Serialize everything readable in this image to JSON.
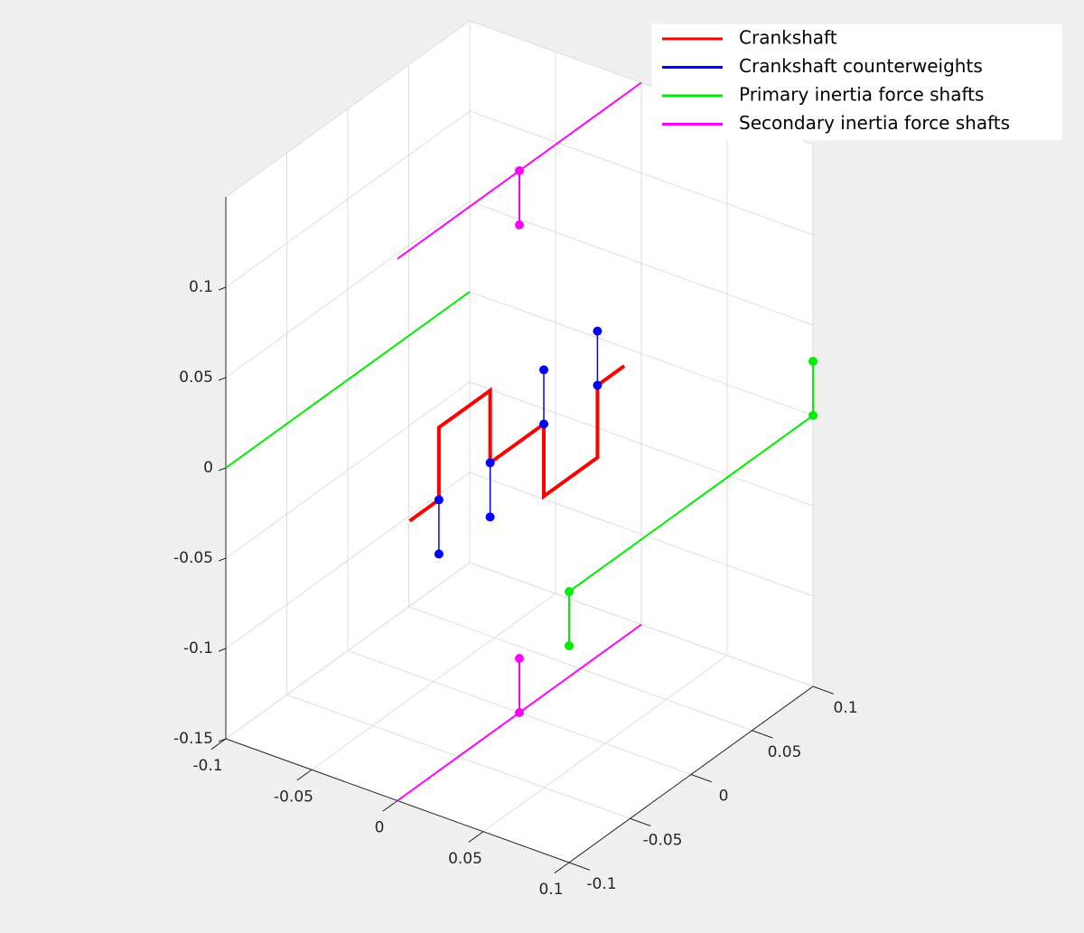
{
  "chart_data": {
    "type": "line3d",
    "xlim": [
      -0.1,
      0.1
    ],
    "ylim": [
      -0.1,
      0.1
    ],
    "zlim": [
      -0.15,
      0.15
    ],
    "xticks": [
      -0.1,
      -0.05,
      0,
      0.05,
      0.1
    ],
    "yticks": [
      -0.1,
      -0.05,
      0,
      0.05,
      0.1
    ],
    "zticks": [
      -0.15,
      -0.1,
      -0.05,
      0,
      0.05,
      0.1
    ],
    "grid": true,
    "legend": "northeast",
    "series": [
      {
        "name": "Crankshaft",
        "color": "#ff0000",
        "linewidth": 4,
        "x": [
          0,
          0,
          0,
          0,
          0,
          0,
          0,
          0,
          0,
          0
        ],
        "y": [
          -0.09,
          -0.066,
          -0.066,
          -0.024,
          -0.024,
          0.02,
          0.02,
          0.064,
          0.064,
          0.086
        ],
        "z": [
          0,
          0,
          0.04,
          0.04,
          0,
          0,
          -0.04,
          -0.04,
          0,
          0
        ]
      },
      {
        "name": "Crankshaft counterweights",
        "color": "#0000ff",
        "linewidth": 1.5,
        "stems": {
          "x": [
            0,
            0,
            null,
            0,
            0,
            null,
            0,
            0,
            null,
            0,
            0
          ],
          "y": [
            -0.066,
            -0.066,
            null,
            -0.024,
            -0.024,
            null,
            0.02,
            0.02,
            null,
            0.064,
            0.064
          ],
          "z": [
            0,
            -0.03,
            null,
            0,
            -0.03,
            null,
            0,
            0.03,
            null,
            0,
            0.03
          ]
        }
      },
      {
        "name": "Primary inertia force shafts",
        "color": "#00ee00",
        "linewidth": 2,
        "x": [
          -0.1,
          -0.1,
          null,
          0.1,
          0.1
        ],
        "y": [
          -0.1,
          0.1,
          null,
          -0.1,
          0.1
        ],
        "z": [
          0,
          0,
          null,
          0,
          0
        ],
        "stems": {
          "x": [
            0.1,
            0.1,
            null,
            0.1,
            0.1
          ],
          "y": [
            0.1,
            0.1,
            null,
            -0.1,
            -0.1
          ],
          "z": [
            0,
            0.03,
            null,
            0,
            -0.03
          ]
        }
      },
      {
        "name": "Secondary inertia force shafts",
        "color": "#ff00ff",
        "linewidth": 2,
        "x": [
          0,
          0,
          null,
          0,
          0
        ],
        "y": [
          -0.1,
          0.1,
          null,
          -0.1,
          0.1
        ],
        "z": [
          0.15,
          0.15,
          null,
          -0.15,
          -0.15
        ],
        "stems": {
          "x": [
            0,
            0,
            null,
            0,
            0
          ],
          "y": [
            0,
            0,
            null,
            0,
            0
          ],
          "z": [
            0.15,
            0.12,
            null,
            -0.15,
            -0.12
          ]
        }
      }
    ]
  }
}
